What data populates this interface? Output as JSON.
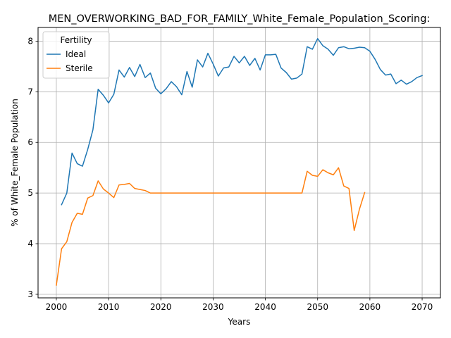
{
  "chart_data": {
    "type": "line",
    "title": "MEN_OVERWORKING_BAD_FOR_FAMILY_White_Female_Population_Scoring:",
    "xlabel": "Years",
    "ylabel": "% of White_Female Population",
    "xlim": [
      1996.5,
      2073.5
    ],
    "ylim": [
      2.93,
      8.27
    ],
    "xticks": [
      2000,
      2010,
      2020,
      2030,
      2040,
      2050,
      2060,
      2070
    ],
    "yticks": [
      3,
      4,
      5,
      6,
      7,
      8
    ],
    "grid": true,
    "legend": {
      "title": "Fertility",
      "placement": "top-left"
    },
    "series": [
      {
        "name": "Ideal",
        "color": "#1f77b4",
        "x": [
          2001,
          2002,
          2003,
          2004,
          2005,
          2006,
          2007,
          2008,
          2009,
          2010,
          2011,
          2012,
          2013,
          2014,
          2015,
          2016,
          2017,
          2018,
          2019,
          2020,
          2021,
          2022,
          2023,
          2024,
          2025,
          2026,
          2027,
          2028,
          2029,
          2030,
          2031,
          2032,
          2033,
          2034,
          2035,
          2036,
          2037,
          2038,
          2039,
          2040,
          2041,
          2042,
          2043,
          2044,
          2045,
          2046,
          2047,
          2048,
          2049,
          2050,
          2051,
          2052,
          2053,
          2054,
          2055,
          2056,
          2057,
          2058,
          2059,
          2060,
          2061,
          2062,
          2063,
          2064,
          2065,
          2066,
          2067,
          2068,
          2069,
          2070
        ],
        "y": [
          4.77,
          5.0,
          5.79,
          5.58,
          5.53,
          5.86,
          6.25,
          7.05,
          6.93,
          6.78,
          6.95,
          7.43,
          7.29,
          7.48,
          7.3,
          7.54,
          7.28,
          7.37,
          7.07,
          6.96,
          7.06,
          7.2,
          7.1,
          6.94,
          7.4,
          7.09,
          7.63,
          7.49,
          7.76,
          7.55,
          7.31,
          7.47,
          7.49,
          7.7,
          7.57,
          7.7,
          7.52,
          7.66,
          7.43,
          7.73,
          7.73,
          7.74,
          7.47,
          7.38,
          7.25,
          7.27,
          7.35,
          7.89,
          7.84,
          8.05,
          7.91,
          7.84,
          7.72,
          7.87,
          7.89,
          7.85,
          7.86,
          7.88,
          7.87,
          7.8,
          7.64,
          7.44,
          7.33,
          7.35,
          7.16,
          7.23,
          7.15,
          7.2,
          7.28,
          7.32
        ]
      },
      {
        "name": "Sterile",
        "color": "#ff7f0e",
        "x": [
          2000,
          2001,
          2002,
          2003,
          2004,
          2005,
          2006,
          2007,
          2008,
          2009,
          2010,
          2011,
          2012,
          2013,
          2014,
          2015,
          2016,
          2017,
          2018,
          2019,
          2020,
          2021,
          2022,
          2023,
          2024,
          2025,
          2026,
          2027,
          2028,
          2029,
          2030,
          2031,
          2032,
          2033,
          2034,
          2035,
          2036,
          2037,
          2038,
          2039,
          2040,
          2041,
          2042,
          2043,
          2044,
          2045,
          2046,
          2047,
          2048,
          2049,
          2050,
          2051,
          2052,
          2053,
          2054,
          2055,
          2056,
          2057,
          2058,
          2059
        ],
        "y": [
          3.18,
          3.9,
          4.04,
          4.42,
          4.6,
          4.58,
          4.9,
          4.95,
          5.24,
          5.08,
          5.0,
          4.91,
          5.16,
          5.17,
          5.19,
          5.09,
          5.07,
          5.05,
          5.0,
          5.0,
          5.0,
          5.0,
          5.0,
          5.0,
          5.0,
          5.0,
          5.0,
          5.0,
          5.0,
          5.0,
          5.0,
          5.0,
          5.0,
          5.0,
          5.0,
          5.0,
          5.0,
          5.0,
          5.0,
          5.0,
          5.0,
          5.0,
          5.0,
          5.0,
          5.0,
          5.0,
          5.0,
          5.0,
          5.43,
          5.35,
          5.33,
          5.46,
          5.4,
          5.36,
          5.5,
          5.14,
          5.09,
          4.26,
          4.68,
          5.01
        ]
      }
    ]
  }
}
